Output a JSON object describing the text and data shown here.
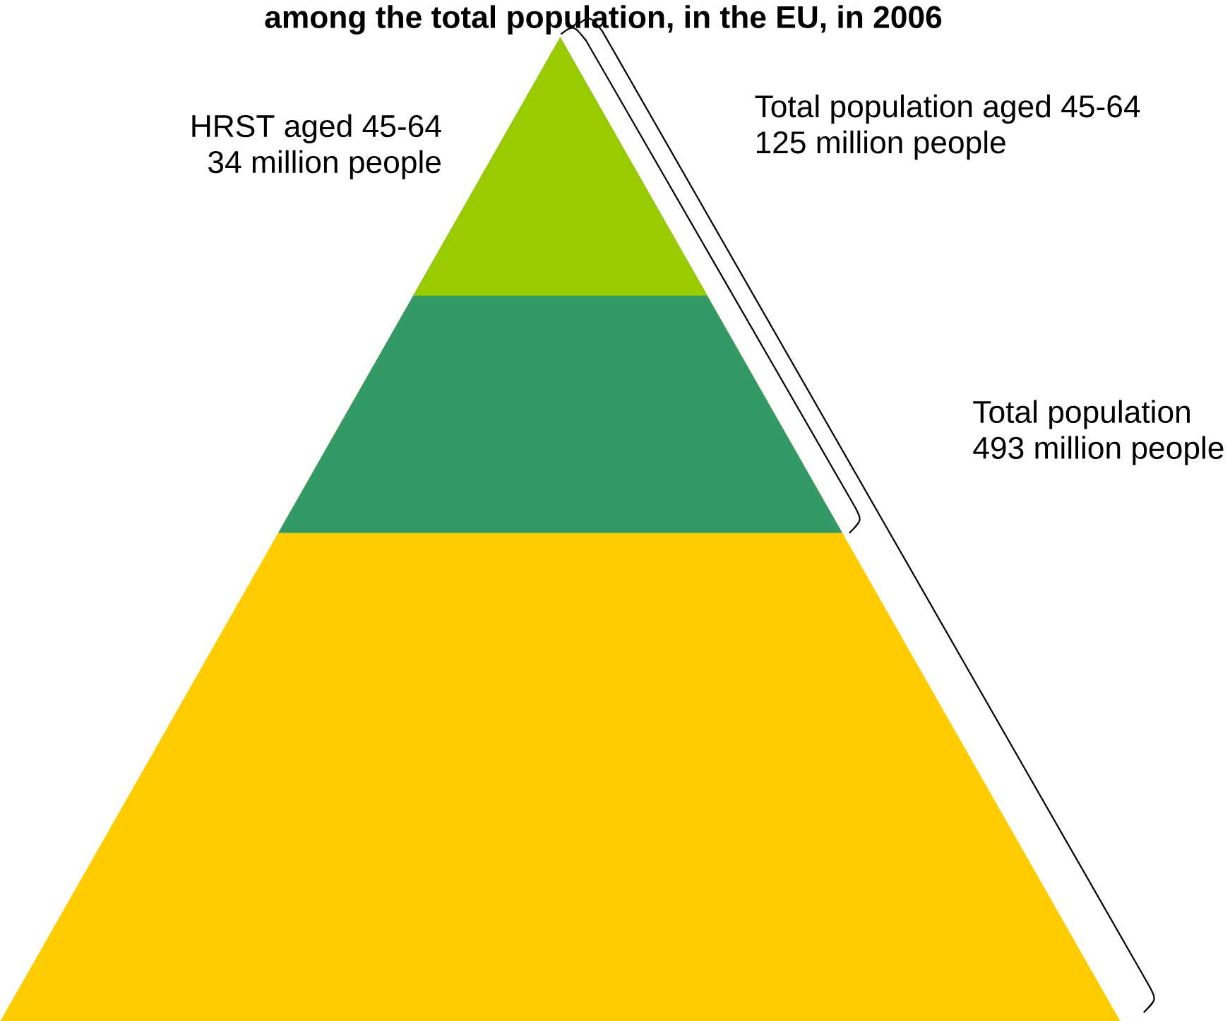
{
  "chart_data": {
    "type": "other",
    "title": "among the total population, in the EU, in 2006",
    "categories": [
      "HRST aged 45-64",
      "Total population aged 45-64",
      "Total population"
    ],
    "values": [
      34,
      125,
      493
    ],
    "value_labels": [
      "34 million people",
      "125 million people",
      "493 million people"
    ],
    "colors": [
      "#99cc00",
      "#339966",
      "#ffcc00"
    ]
  }
}
